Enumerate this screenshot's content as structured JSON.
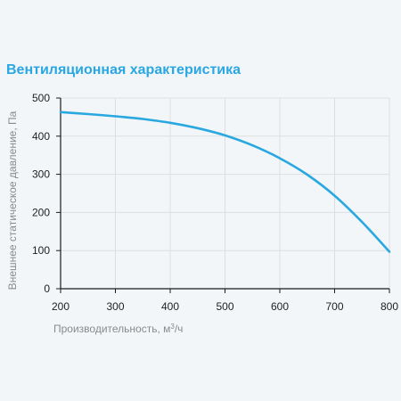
{
  "chart_data": {
    "type": "line",
    "title": "Вентиляционная характеристика",
    "xlabel_main": "Производительность, м",
    "xlabel_sup": "3",
    "xlabel_tail": "/ч",
    "ylabel": "Внешнее статическое давление, Па",
    "xlim": [
      200,
      800
    ],
    "ylim": [
      0,
      500
    ],
    "xticks": [
      200,
      300,
      400,
      500,
      600,
      700,
      800
    ],
    "yticks": [
      0,
      100,
      200,
      300,
      400,
      500
    ],
    "grid": true,
    "series": [
      {
        "color": "#29a8e0",
        "x": [
          200,
          250,
          300,
          350,
          400,
          450,
          500,
          550,
          600,
          650,
          700,
          750,
          800
        ],
        "y": [
          463,
          458,
          452,
          445,
          435,
          421,
          402,
          376,
          342,
          299,
          244,
          175,
          97
        ]
      }
    ]
  }
}
